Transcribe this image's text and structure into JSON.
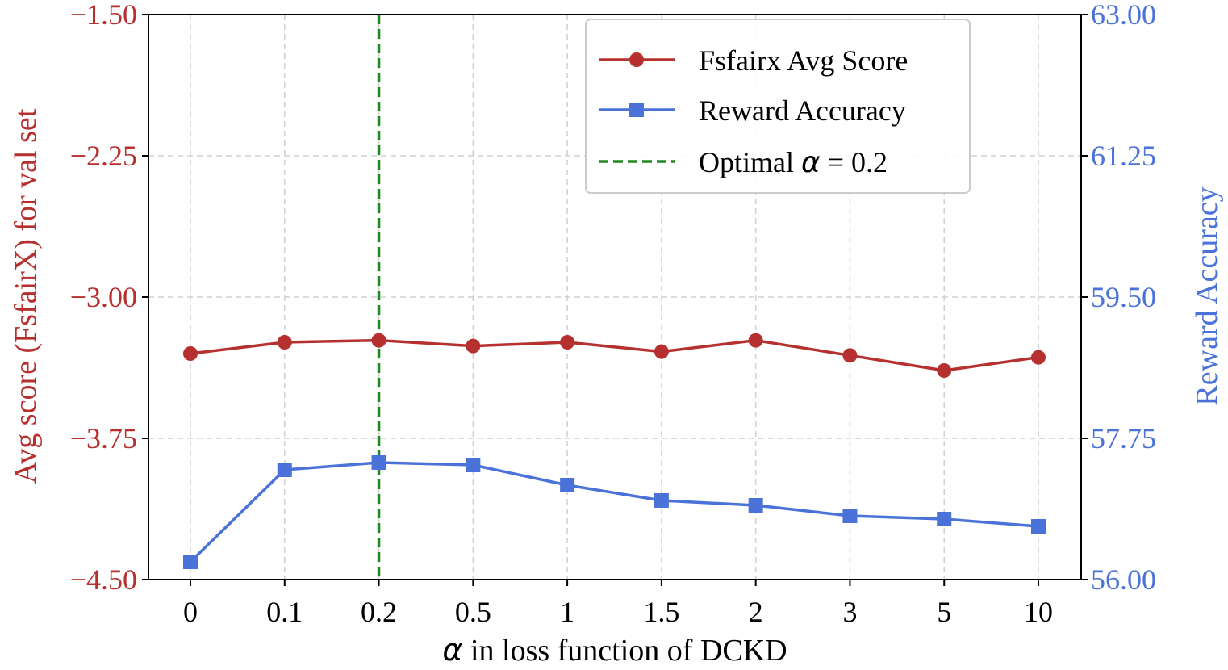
{
  "chart_data": {
    "type": "line",
    "categories": [
      "0",
      "0.1",
      "0.2",
      "0.5",
      "1",
      "1.5",
      "2",
      "3",
      "5",
      "10"
    ],
    "xlabel": "α in loss function of DCKD",
    "xlabel_symbol": "α",
    "xlabel_rest": " in loss function of DCKD",
    "ylabel_left": "Avg score (FsfairX) for val set",
    "ylabel_right": "Reward Accuracy",
    "ylim_left": [
      -4.5,
      -1.5
    ],
    "ylim_right": [
      56.0,
      63.0
    ],
    "yticks_left": [
      "−4.50",
      "−3.75",
      "−3.00",
      "−2.25",
      "−1.50"
    ],
    "yticks_left_values": [
      -4.5,
      -3.75,
      -3.0,
      -2.25,
      -1.5
    ],
    "yticks_right": [
      "56.00",
      "57.75",
      "59.50",
      "61.25",
      "63.00"
    ],
    "yticks_right_values": [
      56.0,
      57.75,
      59.5,
      61.25,
      63.0
    ],
    "grid": true,
    "legend_position": "top-right",
    "series": [
      {
        "name": "Fsfairx Avg Score",
        "axis": "left",
        "marker": "circle",
        "color": "#B5302E",
        "values": [
          -3.3,
          -3.24,
          -3.23,
          -3.26,
          -3.24,
          -3.29,
          -3.23,
          -3.31,
          -3.39,
          -3.32
        ]
      },
      {
        "name": "Reward Accuracy",
        "axis": "right",
        "marker": "square",
        "color": "#4A72D9",
        "values": [
          56.22,
          57.36,
          57.45,
          57.42,
          57.17,
          56.98,
          56.92,
          56.79,
          56.75,
          56.66
        ]
      }
    ],
    "vline": {
      "name": "Optimal α = 0.2",
      "label_prefix": "Optimal ",
      "label_symbol": "α",
      "label_suffix": " = 0.2",
      "category": "0.2",
      "color": "#1E8A1E",
      "style": "dashed"
    }
  }
}
